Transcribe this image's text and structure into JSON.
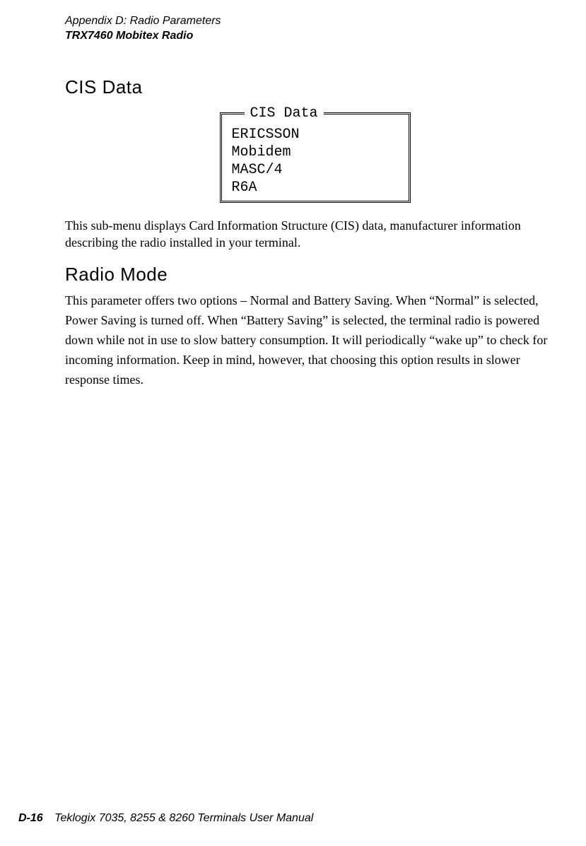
{
  "header": {
    "line1": "Appendix  D:  Radio Parameters",
    "line2": "TRX7460 Mobitex Radio"
  },
  "cis": {
    "heading": "CIS Data",
    "legend": "CIS Data",
    "lines": [
      "ERICSSON",
      "Mobidem",
      "MASC/4",
      "R6A"
    ],
    "paragraph": "This sub-menu displays Card Information Structure (CIS) data, manufacturer information describing the radio installed in your terminal."
  },
  "radio": {
    "heading": "Radio Mode",
    "paragraph": "This parameter offers two options – Normal and Battery Saving. When “Normal” is selected, Power Saving is turned off. When “Battery Saving” is selected, the terminal radio is powered down while not in use to slow battery consumption. It will periodically “wake up” to check for incoming information. Keep in mind, however, that choosing this option results in slower response times."
  },
  "footer": {
    "page": "D-16",
    "title": "Teklogix 7035, 8255 & 8260 Terminals User Manual"
  }
}
